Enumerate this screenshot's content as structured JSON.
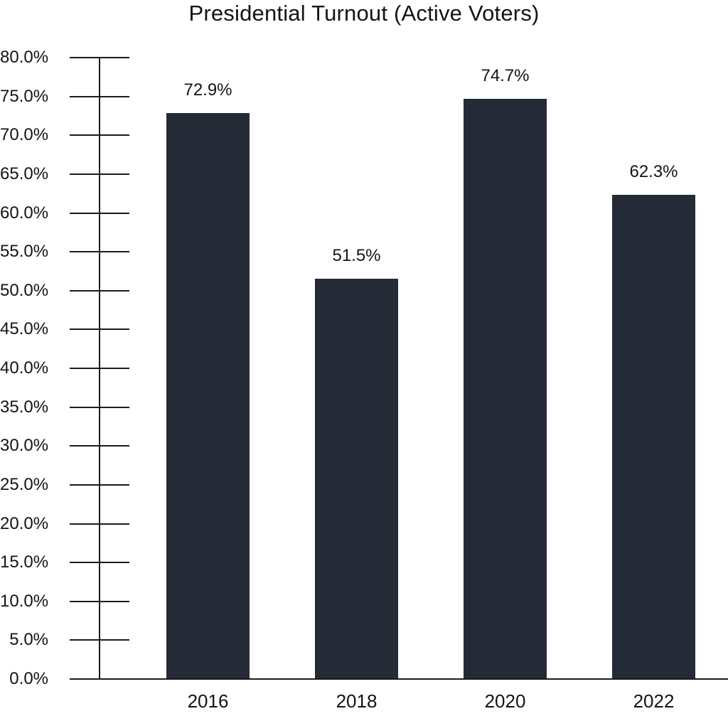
{
  "chart_data": {
    "type": "bar",
    "title": "Presidential Turnout (Active Voters)",
    "categories": [
      "2016",
      "2018",
      "2020",
      "2022"
    ],
    "values": [
      72.9,
      51.5,
      74.7,
      62.3
    ],
    "value_labels": [
      "72.9%",
      "51.5%",
      "74.7%",
      "62.3%"
    ],
    "xlabel": "",
    "ylabel": "",
    "ylim": [
      0,
      80
    ],
    "ytick_step": 5,
    "ytick_labels": [
      "80.0%",
      "75.0%",
      "70.0%",
      "65.0%",
      "60.0%",
      "55.0%",
      "50.0%",
      "45.0%",
      "40.0%",
      "35.0%",
      "30.0%",
      "25.0%",
      "20.0%",
      "15.0%",
      "10.0%",
      "5.0%",
      "0.0%"
    ],
    "grid": false,
    "legend": "none",
    "bar_color": "#252b36",
    "axis_color": "#1b1b1b",
    "text_color": "#141414",
    "background_color": "#ffffff"
  }
}
